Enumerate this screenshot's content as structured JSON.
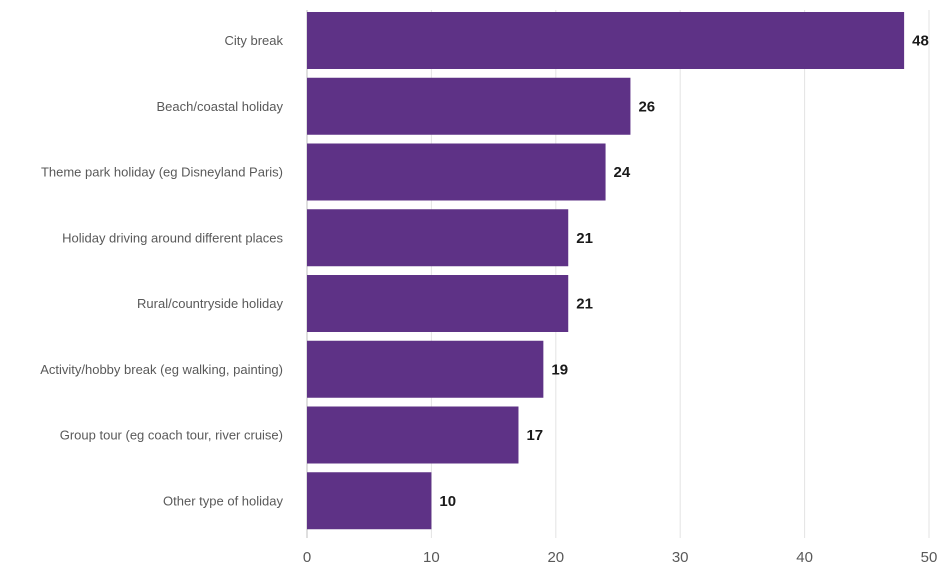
{
  "chart_data": {
    "type": "bar",
    "orientation": "horizontal",
    "categories": [
      "City break",
      "Beach/coastal holiday",
      "Theme park holiday (eg Disneyland Paris)",
      "Holiday driving around different places",
      "Rural/countryside holiday",
      "Activity/hobby break (eg walking, painting)",
      "Group tour (eg coach tour, river cruise)",
      "Other type of holiday"
    ],
    "values": [
      48,
      26,
      24,
      21,
      21,
      19,
      17,
      10
    ],
    "data_labels": [
      "48",
      "26",
      "24",
      "21",
      "21",
      "19",
      "17",
      "10"
    ],
    "xlim": [
      0,
      50
    ],
    "x_ticks": [
      0,
      10,
      20,
      30,
      40,
      50
    ],
    "x_tick_labels": [
      "0",
      "10",
      "20",
      "30",
      "40",
      "50"
    ],
    "title": "",
    "xlabel": "",
    "ylabel": "",
    "grid": "vertical",
    "legend": "none",
    "colors": {
      "bar": "#5e3286",
      "grid": "#e3e3e3",
      "label": "#595959",
      "value_label": "#1a1a1a"
    }
  }
}
